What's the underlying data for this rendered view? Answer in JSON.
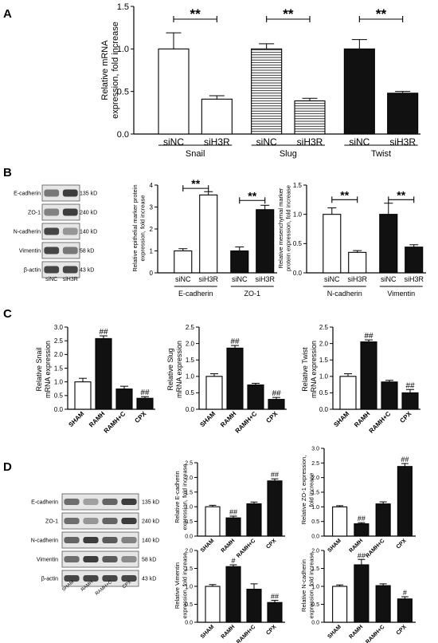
{
  "panel_labels": [
    "A",
    "B",
    "C",
    "D"
  ],
  "chart_data": [
    {
      "id": "A",
      "type": "bar",
      "ylabel": [
        "Relative mRNA",
        "expression, fold increase"
      ],
      "ylim": [
        0,
        1.5
      ],
      "yticks": [
        "0.0",
        "0.5",
        "1.0",
        "1.5"
      ],
      "categories": [
        "siNC",
        "siH3R",
        "siNC",
        "siH3R",
        "siNC",
        "siH3R"
      ],
      "groups": [
        "Snail",
        "Slug",
        "Twist"
      ],
      "values": [
        1.0,
        0.41,
        1.0,
        0.39,
        1.0,
        0.48
      ],
      "errors": [
        0.19,
        0.04,
        0.06,
        0.03,
        0.11,
        0.02
      ],
      "fills": [
        "white",
        "white",
        "hatch",
        "hatch",
        "black",
        "black"
      ],
      "significance": [
        {
          "text": "**",
          "from": 0,
          "to": 1,
          "y": 1.35
        },
        {
          "text": "**",
          "from": 2,
          "to": 3,
          "y": 1.35
        },
        {
          "text": "**",
          "from": 4,
          "to": 5,
          "y": 1.35
        }
      ]
    },
    {
      "id": "B1",
      "type": "bar",
      "ylabel": [
        "Relative epithelial marker protein",
        "expression, fold increase"
      ],
      "ylim": [
        0,
        4
      ],
      "yticks": [
        "0",
        "1",
        "2",
        "3",
        "4"
      ],
      "categories": [
        "siNC",
        "siH3R",
        "siNC",
        "siH3R"
      ],
      "groups": [
        "E-cadherin",
        "ZO-1"
      ],
      "values": [
        1.0,
        3.55,
        1.0,
        2.88
      ],
      "errors": [
        0.1,
        0.15,
        0.18,
        0.2
      ],
      "fills": [
        "white",
        "white",
        "black",
        "black"
      ],
      "significance": [
        {
          "text": "**",
          "from": 0,
          "to": 1,
          "y": 3.85
        },
        {
          "text": "**",
          "from": 2,
          "to": 3,
          "y": 3.3
        }
      ]
    },
    {
      "id": "B2",
      "type": "bar",
      "ylabel": [
        "Relative mesenchymal marker",
        "protein expression, fold increase"
      ],
      "ylim": [
        0,
        1.5
      ],
      "yticks": [
        "0.0",
        "0.5",
        "1.0",
        "1.5"
      ],
      "categories": [
        "siNC",
        "siH3R",
        "siNC",
        "siH3R"
      ],
      "groups": [
        "N-cadherin",
        "Vimentin"
      ],
      "values": [
        1.0,
        0.35,
        1.0,
        0.44
      ],
      "errors": [
        0.11,
        0.03,
        0.19,
        0.04
      ],
      "fills": [
        "white",
        "white",
        "black",
        "black"
      ],
      "significance": [
        {
          "text": "**",
          "from": 0,
          "to": 1,
          "y": 1.25
        },
        {
          "text": "**",
          "from": 2,
          "to": 3,
          "y": 1.25
        }
      ]
    },
    {
      "id": "C1",
      "type": "bar",
      "ylabel": [
        "Relative Snail",
        "mRNA expression"
      ],
      "ylim": [
        0,
        3.0
      ],
      "yticks": [
        "0.0",
        "0.5",
        "1.0",
        "1.5",
        "2.0",
        "2.5",
        "3.0"
      ],
      "categories": [
        "SHAM",
        "RAMH",
        "RAMH+C",
        "CPX"
      ],
      "values": [
        1.0,
        2.58,
        0.74,
        0.4
      ],
      "errors": [
        0.13,
        0.1,
        0.1,
        0.06
      ],
      "fills": [
        "white",
        "black",
        "black",
        "black"
      ],
      "marks": [
        "",
        "##",
        "",
        "##"
      ]
    },
    {
      "id": "C2",
      "type": "bar",
      "ylabel": [
        "Relative Slug",
        "mRNA expression"
      ],
      "ylim": [
        0,
        2.5
      ],
      "yticks": [
        "0.0",
        "0.5",
        "1.0",
        "1.5",
        "2.0",
        "2.5"
      ],
      "categories": [
        "SHAM",
        "RAMH",
        "RAMH+C",
        "CPX"
      ],
      "values": [
        1.0,
        1.86,
        0.74,
        0.3
      ],
      "errors": [
        0.08,
        0.08,
        0.05,
        0.06
      ],
      "fills": [
        "white",
        "black",
        "black",
        "black"
      ],
      "marks": [
        "",
        "##",
        "",
        "##"
      ]
    },
    {
      "id": "C3",
      "type": "bar",
      "ylabel": [
        "Relative Twist",
        "mRNA expression"
      ],
      "ylim": [
        0,
        2.5
      ],
      "yticks": [
        "0.0",
        "0.5",
        "1.0",
        "1.5",
        "2.0",
        "2.5"
      ],
      "categories": [
        "SHAM",
        "RAMH",
        "RAMH+C",
        "CPX"
      ],
      "values": [
        1.0,
        2.05,
        0.83,
        0.5
      ],
      "errors": [
        0.08,
        0.06,
        0.05,
        0.1
      ],
      "fills": [
        "white",
        "black",
        "black",
        "black"
      ],
      "marks": [
        "",
        "##",
        "",
        "##"
      ]
    },
    {
      "id": "D1",
      "type": "bar",
      "ylabel": [
        "Relative E-cadherin",
        "expression, fold increase"
      ],
      "ylim": [
        0,
        2.5
      ],
      "yticks": [
        "0.0",
        "0.5",
        "1.0",
        "1.5",
        "2.0",
        "2.5"
      ],
      "categories": [
        "SHAM",
        "RAMH",
        "RAMH+C",
        "CPX"
      ],
      "values": [
        1.0,
        0.62,
        1.1,
        1.88
      ],
      "errors": [
        0.05,
        0.06,
        0.06,
        0.07
      ],
      "fills": [
        "white",
        "black",
        "black",
        "black"
      ],
      "marks": [
        "",
        "##",
        "",
        "##"
      ]
    },
    {
      "id": "D2",
      "type": "bar",
      "ylabel": [
        "Relative ZO-1 expression,",
        "fold increase"
      ],
      "ylim": [
        0,
        3.0
      ],
      "yticks": [
        "0.0",
        "0.5",
        "1.0",
        "1.5",
        "2.0",
        "2.5",
        "3.0"
      ],
      "categories": [
        "SHAM",
        "RAMH",
        "RAMH+C",
        "CPX"
      ],
      "values": [
        1.0,
        0.42,
        1.1,
        2.38
      ],
      "errors": [
        0.04,
        0.04,
        0.07,
        0.1
      ],
      "fills": [
        "white",
        "black",
        "black",
        "black"
      ],
      "marks": [
        "",
        "##",
        "",
        "##"
      ]
    },
    {
      "id": "D3",
      "type": "bar",
      "ylabel": [
        "Relative Vimentin",
        "expression, fold increase"
      ],
      "ylim": [
        0,
        2.0
      ],
      "yticks": [
        "0.0",
        "0.5",
        "1.0",
        "1.5",
        "2.0"
      ],
      "categories": [
        "SHAM",
        "RAMH",
        "RAMH+C",
        "CPX"
      ],
      "values": [
        1.0,
        1.55,
        0.92,
        0.55
      ],
      "errors": [
        0.05,
        0.05,
        0.15,
        0.06
      ],
      "fills": [
        "white",
        "black",
        "black",
        "black"
      ],
      "marks": [
        "",
        "#",
        "",
        "##"
      ]
    },
    {
      "id": "D4",
      "type": "bar",
      "ylabel": [
        "Relative N-cadherin",
        "expression, fold increase"
      ],
      "ylim": [
        0,
        2.0
      ],
      "yticks": [
        "0.0",
        "0.5",
        "1.0",
        "1.5",
        "2.0"
      ],
      "categories": [
        "SHAM",
        "RAMH",
        "RAMH+C",
        "CPX"
      ],
      "values": [
        1.0,
        1.6,
        1.02,
        0.65
      ],
      "errors": [
        0.04,
        0.15,
        0.05,
        0.06
      ],
      "fills": [
        "white",
        "black",
        "black",
        "black"
      ],
      "marks": [
        "",
        "##",
        "",
        "#"
      ]
    }
  ],
  "blots": [
    {
      "id": "B",
      "labels": [
        "E-cadherin",
        "ZO-1",
        "N-cadherin",
        "Vimentin",
        "β-actin"
      ],
      "sizes": [
        "135 kD",
        "240 kD",
        "140 kD",
        "58 kD",
        "43 kD"
      ],
      "lanes": [
        "siNC",
        "siH3R"
      ],
      "intensity": [
        [
          0.55,
          0.85
        ],
        [
          0.5,
          0.85
        ],
        [
          0.8,
          0.4
        ],
        [
          0.8,
          0.55
        ],
        [
          0.8,
          0.8
        ]
      ]
    },
    {
      "id": "D",
      "labels": [
        "E-cadherin",
        "ZO-1",
        "N-cadherin",
        "Vimentin",
        "β-actin"
      ],
      "sizes": [
        "135 kD",
        "240 kD",
        "140 kD",
        "58 kD",
        "43 kD"
      ],
      "lanes": [
        "SHAM",
        "RAMH",
        "RAMH+C",
        "CPX"
      ],
      "intensity": [
        [
          0.6,
          0.35,
          0.65,
          0.85
        ],
        [
          0.6,
          0.4,
          0.65,
          0.85
        ],
        [
          0.65,
          0.85,
          0.7,
          0.5
        ],
        [
          0.6,
          0.85,
          0.7,
          0.45
        ],
        [
          0.8,
          0.8,
          0.8,
          0.8
        ]
      ]
    }
  ]
}
